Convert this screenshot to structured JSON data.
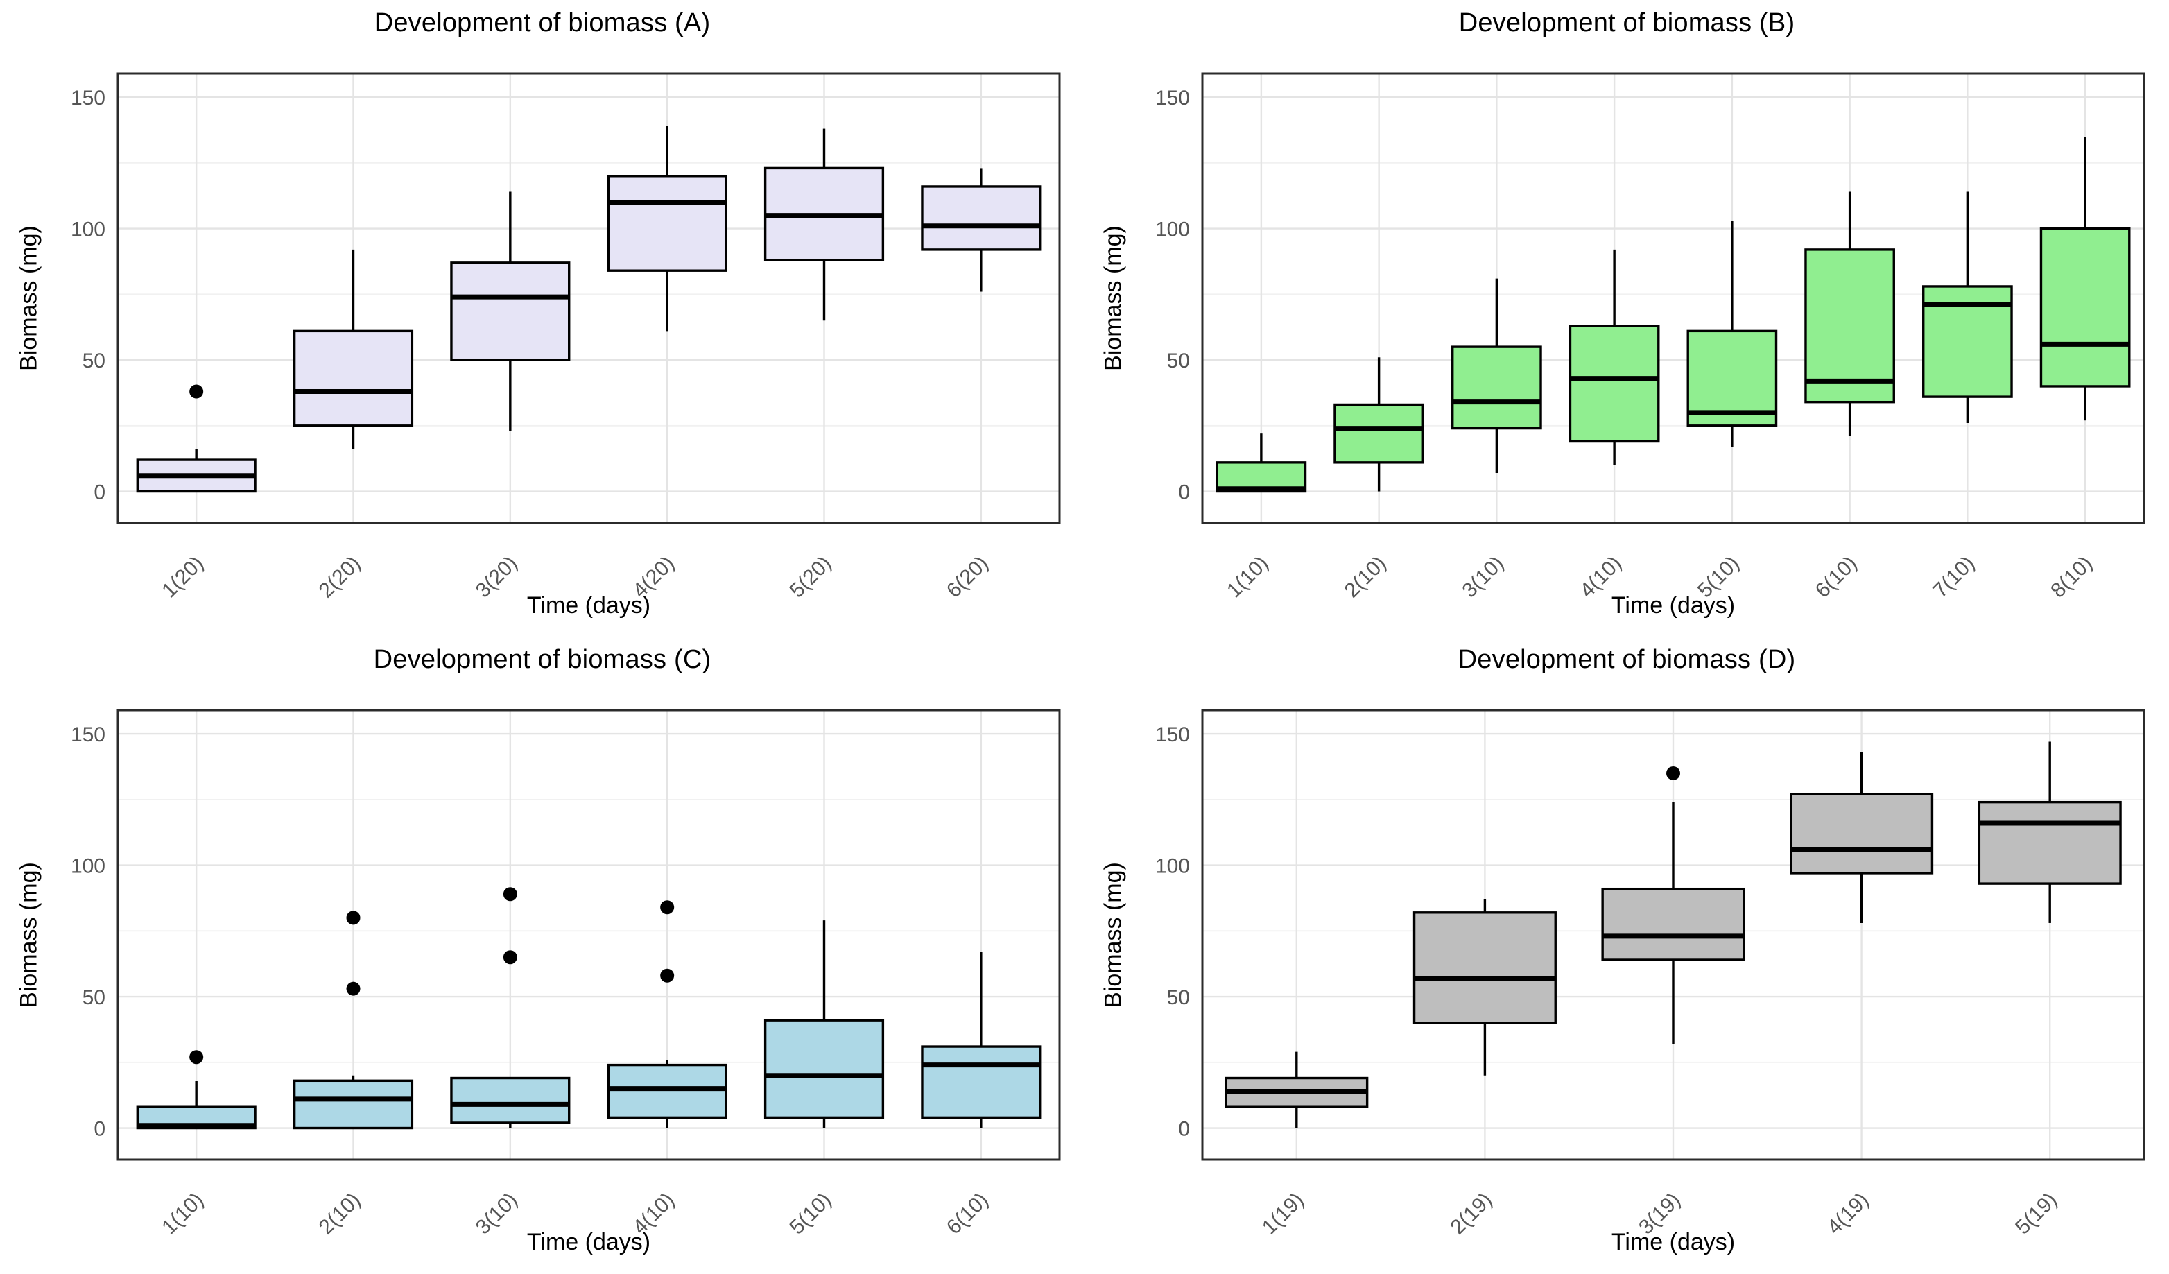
{
  "page": {
    "background": "#ffffff",
    "layout": "2x2-grid-of-boxplots"
  },
  "chart_data": [
    {
      "type": "boxplot",
      "panel": "A",
      "title": "Development of biomass (A)",
      "xlabel": "Time (days)",
      "ylabel": "Biomass (mg)",
      "fill": "#E6E4F6",
      "stroke": "#000000",
      "yticks": [
        0,
        50,
        100,
        150
      ],
      "yminor": [
        25,
        75,
        125
      ],
      "ylim": [
        -12,
        159
      ],
      "grid": "major-and-minor-horizontal, major-vertical",
      "legend": false,
      "categories": [
        "1(20)",
        "2(20)",
        "3(20)",
        "4(20)",
        "5(20)",
        "6(20)"
      ],
      "boxes": [
        {
          "label": "1(20)",
          "whisker_low": 0,
          "q1": 0,
          "median": 6,
          "q3": 12,
          "whisker_high": 16,
          "outliers": [
            38
          ]
        },
        {
          "label": "2(20)",
          "whisker_low": 16,
          "q1": 25,
          "median": 38,
          "q3": 61,
          "whisker_high": 92,
          "outliers": []
        },
        {
          "label": "3(20)",
          "whisker_low": 23,
          "q1": 50,
          "median": 74,
          "q3": 87,
          "whisker_high": 114,
          "outliers": []
        },
        {
          "label": "4(20)",
          "whisker_low": 61,
          "q1": 84,
          "median": 110,
          "q3": 120,
          "whisker_high": 139,
          "outliers": []
        },
        {
          "label": "5(20)",
          "whisker_low": 65,
          "q1": 88,
          "median": 105,
          "q3": 123,
          "whisker_high": 138,
          "outliers": []
        },
        {
          "label": "6(20)",
          "whisker_low": 76,
          "q1": 92,
          "median": 101,
          "q3": 116,
          "whisker_high": 123,
          "outliers": []
        }
      ]
    },
    {
      "type": "boxplot",
      "panel": "B",
      "title": "Development of biomass (B)",
      "xlabel": "Time (days)",
      "ylabel": "Biomass (mg)",
      "fill": "#90EE90",
      "stroke": "#000000",
      "yticks": [
        0,
        50,
        100,
        150
      ],
      "yminor": [
        25,
        75,
        125
      ],
      "ylim": [
        -12,
        159
      ],
      "grid": "major-and-minor-horizontal, major-vertical",
      "legend": false,
      "categories": [
        "1(10)",
        "2(10)",
        "3(10)",
        "4(10)",
        "5(10)",
        "6(10)",
        "7(10)",
        "8(10)"
      ],
      "boxes": [
        {
          "label": "1(10)",
          "whisker_low": 0,
          "q1": 0,
          "median": 1,
          "q3": 11,
          "whisker_high": 22,
          "outliers": []
        },
        {
          "label": "2(10)",
          "whisker_low": 0,
          "q1": 11,
          "median": 24,
          "q3": 33,
          "whisker_high": 51,
          "outliers": []
        },
        {
          "label": "3(10)",
          "whisker_low": 7,
          "q1": 24,
          "median": 34,
          "q3": 55,
          "whisker_high": 81,
          "outliers": []
        },
        {
          "label": "4(10)",
          "whisker_low": 10,
          "q1": 19,
          "median": 43,
          "q3": 63,
          "whisker_high": 92,
          "outliers": []
        },
        {
          "label": "5(10)",
          "whisker_low": 17,
          "q1": 25,
          "median": 30,
          "q3": 61,
          "whisker_high": 103,
          "outliers": []
        },
        {
          "label": "6(10)",
          "whisker_low": 21,
          "q1": 34,
          "median": 42,
          "q3": 92,
          "whisker_high": 114,
          "outliers": []
        },
        {
          "label": "7(10)",
          "whisker_low": 26,
          "q1": 36,
          "median": 71,
          "q3": 78,
          "whisker_high": 114,
          "outliers": []
        },
        {
          "label": "8(10)",
          "whisker_low": 27,
          "q1": 40,
          "median": 56,
          "q3": 100,
          "whisker_high": 135,
          "outliers": []
        }
      ]
    },
    {
      "type": "boxplot",
      "panel": "C",
      "title": "Development of biomass (C)",
      "xlabel": "Time (days)",
      "ylabel": "Biomass (mg)",
      "fill": "#ADD8E6",
      "stroke": "#000000",
      "yticks": [
        0,
        50,
        100,
        150
      ],
      "yminor": [
        25,
        75,
        125
      ],
      "ylim": [
        -12,
        159
      ],
      "grid": "major-and-minor-horizontal, major-vertical",
      "legend": false,
      "categories": [
        "1(10)",
        "2(10)",
        "3(10)",
        "4(10)",
        "5(10)",
        "6(10)"
      ],
      "boxes": [
        {
          "label": "1(10)",
          "whisker_low": 0,
          "q1": 0,
          "median": 1,
          "q3": 8,
          "whisker_high": 18,
          "outliers": [
            27
          ]
        },
        {
          "label": "2(10)",
          "whisker_low": 0,
          "q1": 0,
          "median": 11,
          "q3": 18,
          "whisker_high": 20,
          "outliers": [
            53,
            80
          ]
        },
        {
          "label": "3(10)",
          "whisker_low": 0,
          "q1": 2,
          "median": 9,
          "q3": 19,
          "whisker_high": 19,
          "outliers": [
            65,
            89
          ]
        },
        {
          "label": "4(10)",
          "whisker_low": 0,
          "q1": 4,
          "median": 15,
          "q3": 24,
          "whisker_high": 26,
          "outliers": [
            58,
            84
          ]
        },
        {
          "label": "5(10)",
          "whisker_low": 0,
          "q1": 4,
          "median": 20,
          "q3": 41,
          "whisker_high": 79,
          "outliers": []
        },
        {
          "label": "6(10)",
          "whisker_low": 0,
          "q1": 4,
          "median": 24,
          "q3": 31,
          "whisker_high": 67,
          "outliers": []
        }
      ]
    },
    {
      "type": "boxplot",
      "panel": "D",
      "title": "Development of biomass (D)",
      "xlabel": "Time (days)",
      "ylabel": "Biomass (mg)",
      "fill": "#BEBEBE",
      "stroke": "#000000",
      "yticks": [
        0,
        50,
        100,
        150
      ],
      "yminor": [
        25,
        75,
        125
      ],
      "ylim": [
        -12,
        159
      ],
      "grid": "major-and-minor-horizontal, major-vertical",
      "legend": false,
      "categories": [
        "1(19)",
        "2(19)",
        "3(19)",
        "4(19)",
        "5(19)"
      ],
      "boxes": [
        {
          "label": "1(19)",
          "whisker_low": 0,
          "q1": 8,
          "median": 14,
          "q3": 19,
          "whisker_high": 29,
          "outliers": []
        },
        {
          "label": "2(19)",
          "whisker_low": 20,
          "q1": 40,
          "median": 57,
          "q3": 82,
          "whisker_high": 87,
          "outliers": []
        },
        {
          "label": "3(19)",
          "whisker_low": 32,
          "q1": 64,
          "median": 73,
          "q3": 91,
          "whisker_high": 124,
          "outliers": [
            135
          ]
        },
        {
          "label": "4(19)",
          "whisker_low": 78,
          "q1": 97,
          "median": 106,
          "q3": 127,
          "whisker_high": 143,
          "outliers": []
        },
        {
          "label": "5(19)",
          "whisker_low": 78,
          "q1": 93,
          "median": 116,
          "q3": 124,
          "whisker_high": 147,
          "outliers": []
        }
      ]
    }
  ],
  "style": {
    "panel_border": "#2B2B2B",
    "major_grid": "#E4E4E4",
    "minor_grid": "#F1F1F1",
    "tick_label_color": "#555555",
    "outlier_color": "#000000",
    "plot_background": "#FFFFFF"
  }
}
